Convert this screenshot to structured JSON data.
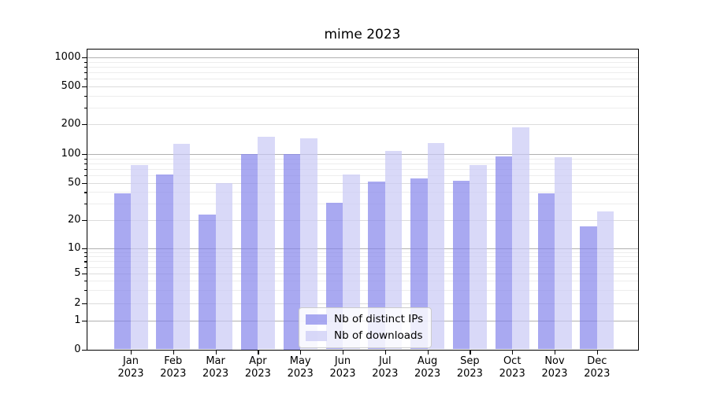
{
  "chart_data": {
    "type": "bar",
    "title": "mime 2023",
    "categories": [
      {
        "month": "Jan",
        "year": "2023"
      },
      {
        "month": "Feb",
        "year": "2023"
      },
      {
        "month": "Mar",
        "year": "2023"
      },
      {
        "month": "Apr",
        "year": "2023"
      },
      {
        "month": "May",
        "year": "2023"
      },
      {
        "month": "Jun",
        "year": "2023"
      },
      {
        "month": "Jul",
        "year": "2023"
      },
      {
        "month": "Aug",
        "year": "2023"
      },
      {
        "month": "Sep",
        "year": "2023"
      },
      {
        "month": "Oct",
        "year": "2023"
      },
      {
        "month": "Nov",
        "year": "2023"
      },
      {
        "month": "Dec",
        "year": "2023"
      }
    ],
    "series": [
      {
        "name": "Nb of distinct IPs",
        "key": "distinct-ips",
        "color": "#8484eb",
        "alpha": 0.7,
        "values": [
          39,
          61,
          23,
          100,
          100,
          31,
          52,
          56,
          53,
          94,
          39,
          17
        ]
      },
      {
        "name": "Nb of downloads",
        "key": "downloads",
        "color": "#c9c9f5",
        "alpha": 0.7,
        "values": [
          77,
          126,
          50,
          150,
          145,
          61,
          108,
          128,
          77,
          187,
          92,
          25
        ]
      }
    ],
    "y_axis": {
      "scale": "symlog",
      "ticks": [
        0,
        1,
        2,
        5,
        10,
        20,
        50,
        100,
        200,
        500,
        1000
      ],
      "minor_ticks": [
        3,
        4,
        6,
        7,
        8,
        9,
        30,
        40,
        60,
        70,
        80,
        90,
        300,
        400,
        600,
        700,
        800,
        900
      ]
    },
    "legend": {
      "position": "lower center"
    },
    "grid": true,
    "colors": {
      "major_gridline": "#b0b0b0",
      "labeled_gridline": "#dcdcdc",
      "minor_gridline": "#ededed"
    }
  }
}
